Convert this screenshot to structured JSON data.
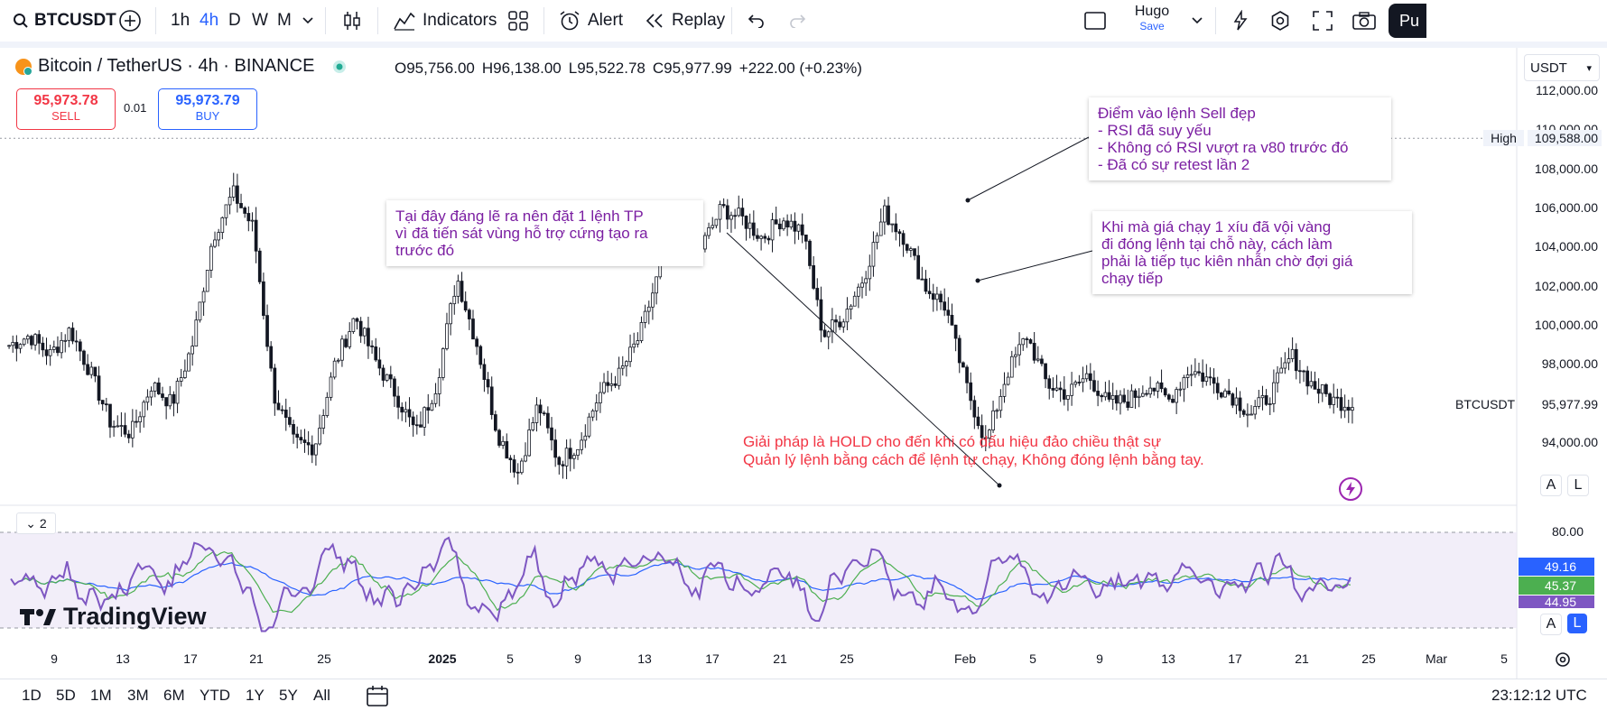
{
  "toolbar": {
    "symbol": "BTCUSDT",
    "intervals": [
      "1h",
      "4h",
      "D",
      "W",
      "M"
    ],
    "active_interval": "4h",
    "indicators_label": "Indicators",
    "alert_label": "Alert",
    "replay_label": "Replay",
    "user_name": "Hugo",
    "save_label": "Save",
    "publish_label": "Pu"
  },
  "legend": {
    "title": "Bitcoin / TetherUS · 4h · BINANCE",
    "open": "O95,756.00",
    "high": "H96,138.00",
    "low": "L95,522.78",
    "close": "C95,977.99",
    "change": "+222.00 (+0.23%)",
    "sell_price": "95,973.78",
    "sell_label": "SELL",
    "spread": "0.01",
    "buy_price": "95,973.79",
    "buy_label": "BUY"
  },
  "currency": "USDT",
  "price_axis": {
    "ticks": [
      "112,000.00",
      "110,000.00",
      "108,000.00",
      "106,000.00",
      "104,000.00",
      "102,000.00",
      "100,000.00",
      "98,000.00",
      "94,000.00"
    ],
    "high_label": "High",
    "high_value": "109,588.00",
    "symbol_label": "BTCUSDT",
    "last_value": "95,977.99"
  },
  "rsi_axis": {
    "pane_index": "2",
    "top": "80.00",
    "v1": "49.16",
    "v2": "45.37",
    "v3": "44.95"
  },
  "annotations": {
    "note_sell": "Điểm vào lệnh Sell đẹp\n- RSI đã suy yếu\n- Không có RSI vượt ra v80 trước đó\n- Đã có sự retest lần 2",
    "note_tp": "Tại đây đáng lẽ ra nên đặt 1 lệnh TP\nvì đã tiến sát vùng hỗ trợ cứng tạo ra\ntrước đó",
    "note_close": "Khi mà giá chạy 1 xíu đã vội vàng\nđi đóng lệnh tại chỗ này, cách làm\nphải là tiếp tục kiên nhẫn chờ đợi giá\nchạy tiếp",
    "note_hold": "Giải pháp là HOLD cho đến khi có dấu hiệu đảo chiều thật sự\nQuản lý lệnh bằng cách để lệnh tự chạy, Không đóng lệnh bằng tay."
  },
  "watermark": "TradingView",
  "time_axis": [
    "9",
    "13",
    "17",
    "21",
    "25",
    "2025",
    "5",
    "9",
    "13",
    "17",
    "21",
    "25",
    "Feb",
    "5",
    "9",
    "13",
    "17",
    "21",
    "25",
    "Mar",
    "5"
  ],
  "bottom": {
    "ranges": [
      "1D",
      "5D",
      "1M",
      "3M",
      "6M",
      "YTD",
      "1Y",
      "5Y",
      "All"
    ],
    "clock": "23:12:12 UTC"
  },
  "colors": {
    "up": "#131722",
    "rsi_line": "#7e57c2",
    "rsi_ma": "#4caf50",
    "rsi_ma2": "#2962ff",
    "note_text": "#7b1fa2",
    "red_text": "#f23645"
  },
  "chart_data": {
    "type": "candlestick",
    "symbol": "BTCUSDT",
    "timeframe": "4h",
    "x": [
      "9",
      "13",
      "17",
      "21",
      "25",
      "2025",
      "5",
      "9",
      "13",
      "17",
      "21",
      "25",
      "Feb",
      "5",
      "9",
      "13",
      "17",
      "21",
      "25"
    ],
    "close_path": [
      99000,
      99500,
      98500,
      99800,
      97600,
      95000,
      94500,
      97000,
      96000,
      99000,
      104500,
      106800,
      105000,
      96500,
      94000,
      93800,
      98000,
      100500,
      98200,
      96500,
      94500,
      97000,
      102500,
      99000,
      94500,
      92500,
      96000,
      93000,
      94000,
      96500,
      97500,
      99500,
      103000,
      105500,
      104000,
      106000,
      105500,
      104500,
      105500,
      104800,
      99500,
      100500,
      102500,
      105800,
      104500,
      102000,
      101000,
      97000,
      94000,
      97500,
      99500,
      97000,
      96500,
      97500,
      96000,
      96200,
      97000,
      96200,
      97800,
      97200,
      96500,
      95500,
      96500,
      98500,
      97000,
      96200,
      95978
    ],
    "ylim": [
      92000,
      113000
    ],
    "high": 109588,
    "last": 95977.99,
    "rsi": {
      "upper": 80,
      "values": [
        49.16,
        45.37,
        44.95
      ]
    }
  }
}
